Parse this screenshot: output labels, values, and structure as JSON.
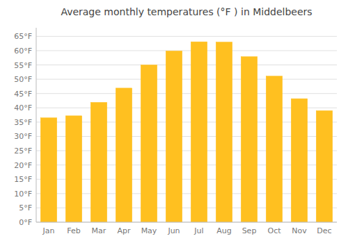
{
  "chart_data": {
    "type": "bar",
    "title": "Average monthly temperatures (°F ) in Middelbeers",
    "categories": [
      "Jan",
      "Feb",
      "Mar",
      "Apr",
      "May",
      "Jun",
      "Jul",
      "Aug",
      "Sep",
      "Oct",
      "Nov",
      "Dec"
    ],
    "values": [
      36.5,
      37.2,
      41.9,
      46.9,
      55.0,
      59.9,
      63.1,
      63.0,
      57.9,
      51.1,
      43.2,
      39.0
    ],
    "color": "#FFC020",
    "ylim": [
      0,
      68
    ],
    "yticks": [
      {
        "value": 0,
        "label": "0°F"
      },
      {
        "value": 5,
        "label": "5°F"
      },
      {
        "value": 10,
        "label": "10°F"
      },
      {
        "value": 15,
        "label": "15°F"
      },
      {
        "value": 20,
        "label": "20°F"
      },
      {
        "value": 25,
        "label": "25°F"
      },
      {
        "value": 30,
        "label": "30°F"
      },
      {
        "value": 35,
        "label": "35°F"
      },
      {
        "value": 40,
        "label": "40°F"
      },
      {
        "value": 45,
        "label": "45°F"
      },
      {
        "value": 50,
        "label": "50°F"
      },
      {
        "value": 55,
        "label": "55°F"
      },
      {
        "value": 60,
        "label": "60°F"
      },
      {
        "value": 65,
        "label": "65°F"
      }
    ],
    "grid": true
  }
}
